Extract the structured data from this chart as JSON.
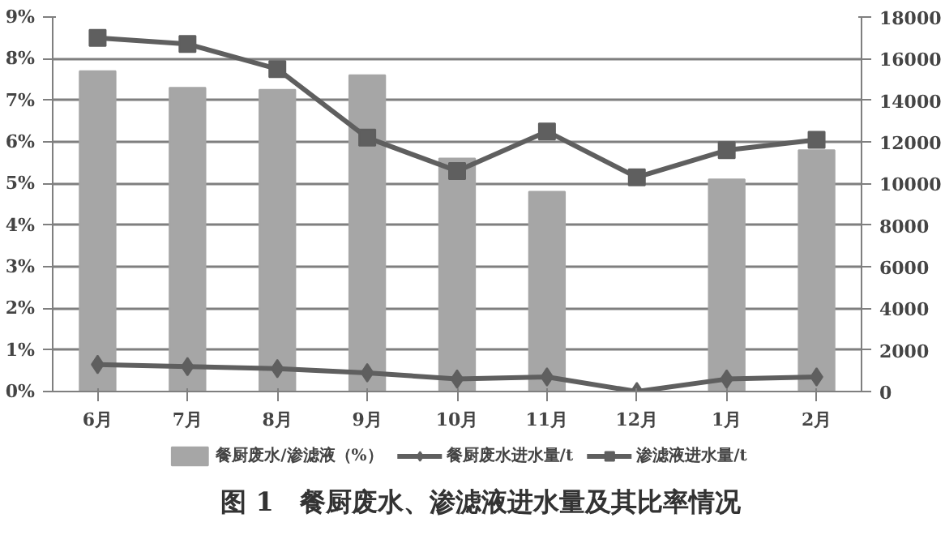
{
  "chart_data": {
    "type": "bar",
    "title": "图 1　餐厨废水、渗滤液进水量及其比率情况",
    "categories": [
      "6月",
      "7月",
      "8月",
      "9月",
      "10月",
      "11月",
      "12月",
      "1月",
      "2月"
    ],
    "series": [
      {
        "name": "餐厨废水/渗滤液（%）",
        "color": "#a6a6a6",
        "values": [
          7.7,
          7.3,
          7.25,
          7.6,
          5.6,
          4.8,
          0,
          5.1,
          5.8
        ]
      },
      {
        "name": "餐厨废水进水量/t",
        "type": "line",
        "axis": "y2",
        "marker": "diamond",
        "color": "#5f5f5f",
        "values": [
          1300,
          1200,
          1100,
          900,
          600,
          700,
          0,
          600,
          700
        ]
      },
      {
        "name": "渗滤液进水量/t",
        "type": "line",
        "axis": "y2",
        "marker": "square",
        "color": "#5f5f5f",
        "values": [
          17000,
          16700,
          15500,
          12200,
          10600,
          12500,
          10300,
          11600,
          12100
        ]
      }
    ],
    "ylim": [
      0,
      9
    ],
    "yticks": [
      {
        "value": 0,
        "label": "0%"
      },
      {
        "value": 1,
        "label": "1%"
      },
      {
        "value": 2,
        "label": "2%"
      },
      {
        "value": 3,
        "label": "3%"
      },
      {
        "value": 4,
        "label": "4%"
      },
      {
        "value": 5,
        "label": "5%"
      },
      {
        "value": 6,
        "label": "6%"
      },
      {
        "value": 7,
        "label": "7%"
      },
      {
        "value": 8,
        "label": "8%"
      },
      {
        "value": 9,
        "label": "9%"
      }
    ],
    "y2lim": [
      0,
      18000
    ],
    "y2ticks": [
      0,
      2000,
      4000,
      6000,
      8000,
      10000,
      12000,
      14000,
      16000,
      18000
    ],
    "grid": "y",
    "legend": "bottom"
  }
}
